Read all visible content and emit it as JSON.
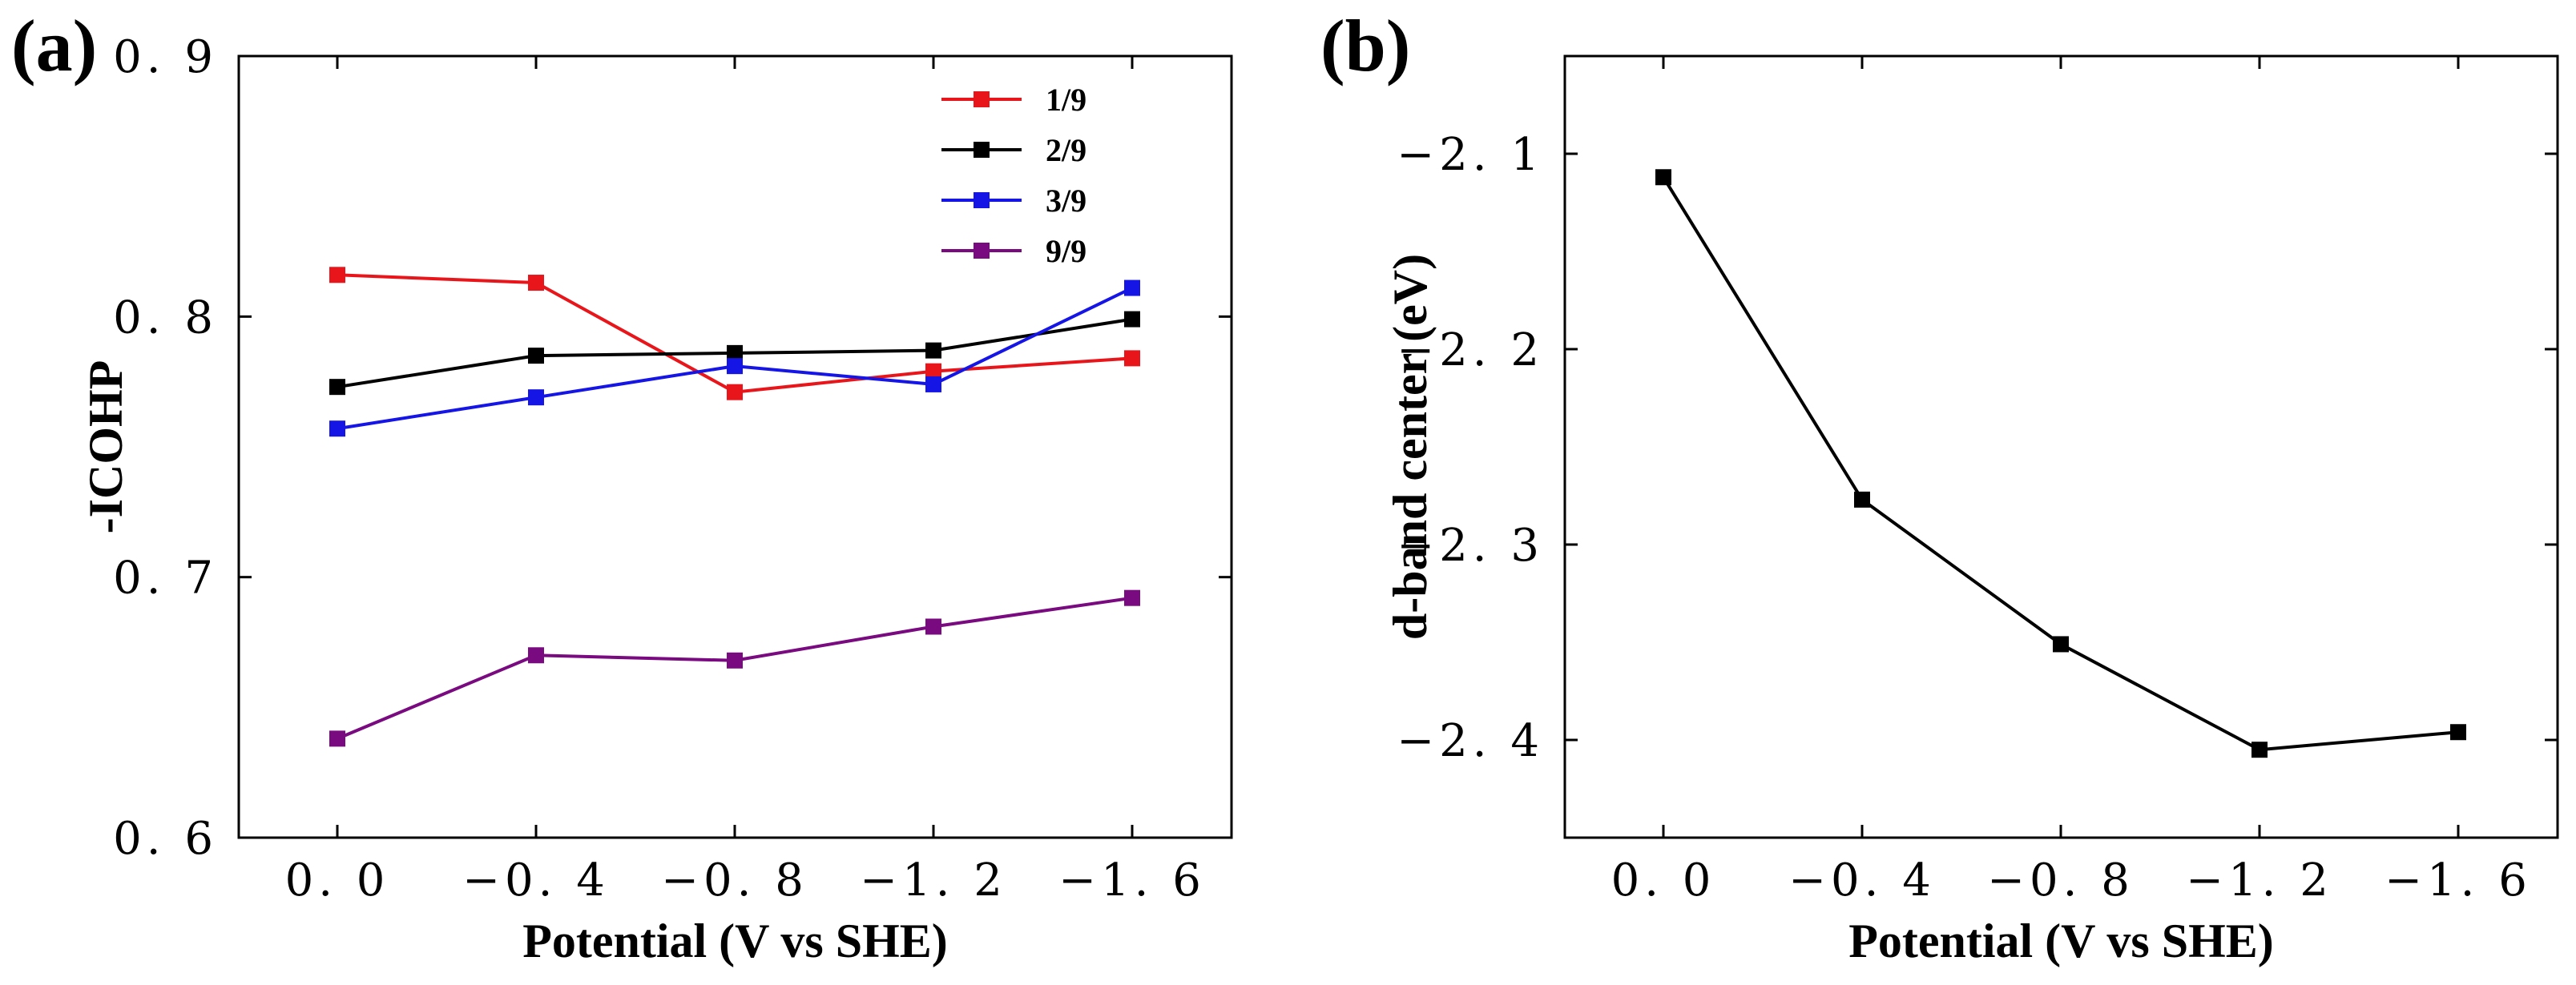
{
  "chart_data": [
    {
      "panel": "(a)",
      "type": "line",
      "title": "",
      "xlabel": "Potential (V vs SHE)",
      "ylabel": "-ICOHP",
      "categories": [
        0.0,
        -0.4,
        -0.8,
        -1.2,
        -1.6
      ],
      "xtick_labels": [
        "0. 0",
        "−0. 4",
        "−0. 8",
        "−1. 2",
        "−1. 6"
      ],
      "ylim": [
        0.6,
        0.9
      ],
      "yticks": [
        0.6,
        0.7,
        0.8,
        0.9
      ],
      "ytick_labels": [
        "0. 6",
        "0. 7",
        "0. 8",
        "0. 9"
      ],
      "legend_position": "top-right",
      "grid": false,
      "series": [
        {
          "name": "1/9",
          "color": "#e8161b",
          "values": [
            0.816,
            0.813,
            0.771,
            0.779,
            0.784
          ]
        },
        {
          "name": "2/9",
          "color": "#000000",
          "values": [
            0.773,
            0.785,
            0.786,
            0.787,
            0.799
          ]
        },
        {
          "name": "3/9",
          "color": "#1515e6",
          "values": [
            0.757,
            0.769,
            0.781,
            0.774,
            0.811
          ]
        },
        {
          "name": "9/9",
          "color": "#7a0a80",
          "values": [
            0.638,
            0.67,
            0.668,
            0.681,
            0.692
          ]
        }
      ]
    },
    {
      "panel": "(b)",
      "type": "line",
      "title": "",
      "xlabel": "Potential (V vs SHE)",
      "ylabel": "d-band center (eV)",
      "categories": [
        0.0,
        -0.4,
        -0.8,
        -1.2,
        -1.6
      ],
      "xtick_labels": [
        "0. 0",
        "−0. 4",
        "−0. 8",
        "−1. 2",
        "−1. 6"
      ],
      "ylim": [
        -2.45,
        -2.05
      ],
      "yticks": [
        -2.1,
        -2.2,
        -2.3,
        -2.4
      ],
      "ytick_labels": [
        "−2. 1",
        "−2. 2",
        "−2. 3",
        "−2. 4"
      ],
      "grid": false,
      "series": [
        {
          "name": "d-band center",
          "color": "#000000",
          "values": [
            -2.112,
            -2.277,
            -2.351,
            -2.405,
            -2.396
          ]
        }
      ]
    }
  ]
}
